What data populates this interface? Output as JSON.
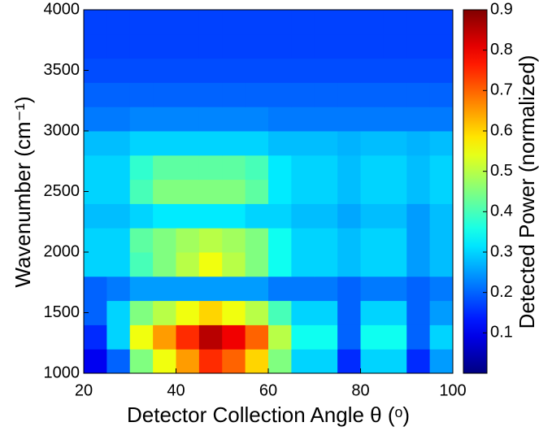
{
  "chart_data": {
    "type": "heatmap",
    "xlabel": "Detector Collection Angle θ (ᵒ)",
    "ylabel": "Wavenumber (cm⁻¹)",
    "colorbar_label": "Detected Power (normalized)",
    "colormap": "jet",
    "x": [
      22.5,
      27.5,
      32.5,
      37.5,
      42.5,
      47.5,
      52.5,
      57.5,
      62.5,
      67.5,
      72.5,
      77.5,
      82.5,
      87.5,
      92.5,
      97.5
    ],
    "y": [
      1100,
      1300,
      1500,
      1700,
      1900,
      2100,
      2300,
      2500,
      2700,
      2900,
      3100,
      3300,
      3500,
      3700,
      3900
    ],
    "z": [
      [
        0.1,
        0.2,
        0.45,
        0.55,
        0.65,
        0.75,
        0.7,
        0.6,
        0.45,
        0.3,
        0.3,
        0.15,
        0.3,
        0.3,
        0.15,
        0.25
      ],
      [
        0.15,
        0.3,
        0.55,
        0.65,
        0.75,
        0.85,
        0.8,
        0.7,
        0.5,
        0.35,
        0.35,
        0.2,
        0.35,
        0.35,
        0.2,
        0.3
      ],
      [
        0.2,
        0.3,
        0.45,
        0.5,
        0.55,
        0.6,
        0.55,
        0.5,
        0.4,
        0.3,
        0.3,
        0.2,
        0.3,
        0.3,
        0.2,
        0.25
      ],
      [
        0.2,
        0.22,
        0.25,
        0.25,
        0.25,
        0.25,
        0.25,
        0.25,
        0.22,
        0.22,
        0.22,
        0.2,
        0.22,
        0.22,
        0.2,
        0.22
      ],
      [
        0.3,
        0.3,
        0.4,
        0.45,
        0.5,
        0.55,
        0.5,
        0.45,
        0.35,
        0.3,
        0.3,
        0.28,
        0.3,
        0.3,
        0.25,
        0.28
      ],
      [
        0.3,
        0.3,
        0.42,
        0.45,
        0.48,
        0.5,
        0.48,
        0.45,
        0.35,
        0.3,
        0.3,
        0.28,
        0.3,
        0.3,
        0.25,
        0.28
      ],
      [
        0.28,
        0.28,
        0.3,
        0.32,
        0.32,
        0.32,
        0.32,
        0.3,
        0.3,
        0.28,
        0.28,
        0.26,
        0.28,
        0.28,
        0.25,
        0.28
      ],
      [
        0.3,
        0.3,
        0.4,
        0.45,
        0.45,
        0.45,
        0.45,
        0.42,
        0.32,
        0.3,
        0.3,
        0.28,
        0.3,
        0.3,
        0.28,
        0.3
      ],
      [
        0.3,
        0.3,
        0.38,
        0.42,
        0.42,
        0.42,
        0.42,
        0.4,
        0.32,
        0.3,
        0.3,
        0.28,
        0.3,
        0.3,
        0.28,
        0.3
      ],
      [
        0.28,
        0.28,
        0.3,
        0.3,
        0.3,
        0.3,
        0.3,
        0.3,
        0.28,
        0.28,
        0.28,
        0.27,
        0.28,
        0.28,
        0.27,
        0.28
      ],
      [
        0.22,
        0.22,
        0.23,
        0.23,
        0.23,
        0.23,
        0.23,
        0.23,
        0.22,
        0.22,
        0.22,
        0.22,
        0.22,
        0.22,
        0.22,
        0.22
      ],
      [
        0.2,
        0.2,
        0.2,
        0.2,
        0.2,
        0.2,
        0.2,
        0.2,
        0.2,
        0.2,
        0.2,
        0.2,
        0.2,
        0.2,
        0.2,
        0.2
      ],
      [
        0.18,
        0.18,
        0.18,
        0.18,
        0.18,
        0.18,
        0.18,
        0.18,
        0.18,
        0.18,
        0.18,
        0.18,
        0.18,
        0.18,
        0.18,
        0.18
      ],
      [
        0.17,
        0.17,
        0.17,
        0.17,
        0.17,
        0.17,
        0.17,
        0.17,
        0.17,
        0.17,
        0.17,
        0.17,
        0.17,
        0.17,
        0.17,
        0.17
      ],
      [
        0.17,
        0.17,
        0.17,
        0.17,
        0.17,
        0.17,
        0.17,
        0.17,
        0.17,
        0.17,
        0.17,
        0.17,
        0.17,
        0.17,
        0.17,
        0.17
      ]
    ],
    "xlim": [
      20,
      100
    ],
    "xticks": [
      20,
      40,
      60,
      80,
      100
    ],
    "ylim": [
      1000,
      4000
    ],
    "yticks": [
      1000,
      1500,
      2000,
      2500,
      3000,
      3500,
      4000
    ],
    "zlim": [
      0,
      0.9
    ],
    "zticks": [
      0.1,
      0.2,
      0.3,
      0.4,
      0.5,
      0.6,
      0.7,
      0.8,
      0.9
    ]
  }
}
